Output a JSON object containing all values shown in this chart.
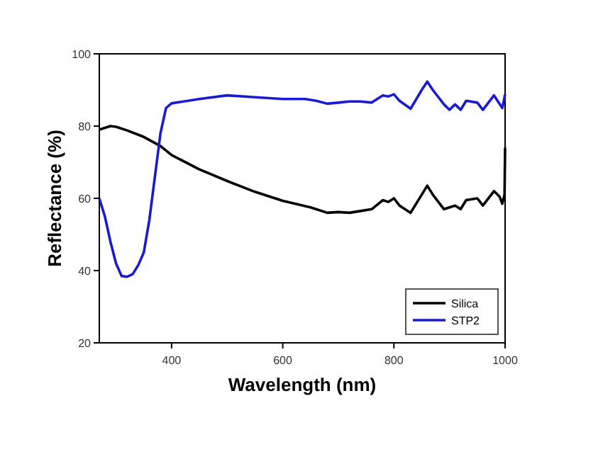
{
  "chart_data": {
    "type": "line",
    "xlabel": "Wavelength (nm)",
    "ylabel": "Reflectance (%)",
    "xlim": [
      270,
      1000
    ],
    "ylim": [
      20,
      100
    ],
    "xticks": [
      400,
      600,
      800,
      1000
    ],
    "yticks": [
      20,
      40,
      60,
      80,
      100
    ],
    "legend": "bottom right",
    "series": [
      {
        "name": "Silica",
        "color": "#000000",
        "x": [
          270,
          280,
          290,
          300,
          320,
          350,
          380,
          400,
          450,
          500,
          550,
          600,
          650,
          680,
          700,
          720,
          740,
          760,
          780,
          790,
          800,
          810,
          830,
          850,
          860,
          870,
          890,
          900,
          910,
          920,
          930,
          950,
          960,
          980,
          990,
          995,
          999,
          1000
        ],
        "values": [
          79,
          79.5,
          80,
          79.8,
          78.8,
          77,
          74.5,
          72,
          68,
          64.8,
          61.8,
          59.3,
          57.5,
          56,
          56.2,
          56,
          56.5,
          57,
          59.5,
          59,
          60,
          58,
          56,
          61,
          63.5,
          61,
          57,
          57.5,
          58,
          57,
          59.5,
          60,
          58,
          62,
          60.5,
          58.5,
          61,
          74
        ]
      },
      {
        "name": "STP2",
        "color": "#1a1ad0",
        "x": [
          270,
          280,
          290,
          300,
          310,
          320,
          330,
          340,
          350,
          360,
          370,
          380,
          390,
          400,
          450,
          500,
          550,
          600,
          640,
          660,
          680,
          700,
          720,
          740,
          760,
          780,
          790,
          800,
          810,
          830,
          850,
          860,
          870,
          890,
          900,
          910,
          920,
          930,
          950,
          960,
          980,
          995,
          1000
        ],
        "values": [
          60,
          55,
          48,
          42,
          38.5,
          38.3,
          39,
          41.5,
          45,
          54,
          66,
          78,
          85,
          86.3,
          87.5,
          88.5,
          88,
          87.5,
          87.5,
          87,
          86.2,
          86.5,
          86.8,
          86.8,
          86.5,
          88.5,
          88.2,
          88.8,
          87,
          84.8,
          90,
          92.3,
          90,
          86,
          84.5,
          86,
          84.5,
          87,
          86.5,
          84.5,
          88.5,
          85,
          88.8
        ]
      }
    ]
  }
}
